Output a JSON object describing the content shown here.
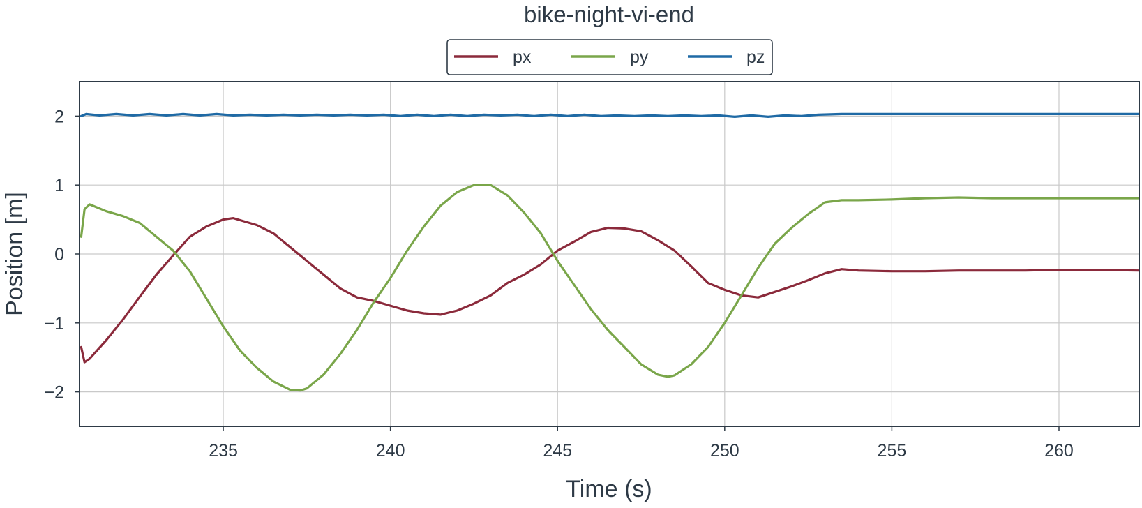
{
  "chart_data": {
    "type": "line",
    "title": "bike-night-vi-end",
    "xlabel": "Time (s)",
    "ylabel": "Position [m]",
    "xlim": [
      230.7,
      262.4
    ],
    "ylim": [
      -2.5,
      2.5
    ],
    "xticks": [
      235,
      240,
      245,
      250,
      255,
      260
    ],
    "yticks": [
      -2,
      -1,
      0,
      1,
      2
    ],
    "xtick_labels": [
      "235",
      "240",
      "245",
      "250",
      "255",
      "260"
    ],
    "ytick_labels": [
      "−2",
      "−1",
      "0",
      "1",
      "2"
    ],
    "grid": true,
    "legend": {
      "placement": "top-center, outside plot",
      "columns": 3
    },
    "colors": {
      "px": "#8b2a3b",
      "py": "#7aa64a",
      "pz": "#1f6aa5",
      "text": "#2e3a46"
    },
    "series": [
      {
        "name": "px",
        "color": "#8b2a3b",
        "points": [
          [
            230.75,
            -1.35
          ],
          [
            230.85,
            -1.57
          ],
          [
            231.0,
            -1.52
          ],
          [
            231.5,
            -1.25
          ],
          [
            232.0,
            -0.95
          ],
          [
            232.5,
            -0.62
          ],
          [
            233.0,
            -0.3
          ],
          [
            233.5,
            -0.02
          ],
          [
            234.0,
            0.25
          ],
          [
            234.5,
            0.4
          ],
          [
            235.0,
            0.5
          ],
          [
            235.3,
            0.52
          ],
          [
            236.0,
            0.42
          ],
          [
            236.5,
            0.3
          ],
          [
            237.0,
            0.1
          ],
          [
            237.5,
            -0.1
          ],
          [
            238.0,
            -0.3
          ],
          [
            238.5,
            -0.5
          ],
          [
            239.0,
            -0.63
          ],
          [
            239.5,
            -0.68
          ],
          [
            240.0,
            -0.75
          ],
          [
            240.5,
            -0.82
          ],
          [
            241.0,
            -0.86
          ],
          [
            241.5,
            -0.88
          ],
          [
            242.0,
            -0.82
          ],
          [
            242.5,
            -0.72
          ],
          [
            243.0,
            -0.6
          ],
          [
            243.5,
            -0.42
          ],
          [
            244.0,
            -0.3
          ],
          [
            244.5,
            -0.15
          ],
          [
            245.0,
            0.05
          ],
          [
            245.5,
            0.18
          ],
          [
            246.0,
            0.32
          ],
          [
            246.5,
            0.38
          ],
          [
            247.0,
            0.37
          ],
          [
            247.5,
            0.33
          ],
          [
            248.0,
            0.2
          ],
          [
            248.5,
            0.05
          ],
          [
            249.0,
            -0.18
          ],
          [
            249.5,
            -0.42
          ],
          [
            250.0,
            -0.52
          ],
          [
            250.5,
            -0.6
          ],
          [
            251.0,
            -0.63
          ],
          [
            251.5,
            -0.55
          ],
          [
            252.0,
            -0.47
          ],
          [
            252.5,
            -0.38
          ],
          [
            253.0,
            -0.28
          ],
          [
            253.5,
            -0.22
          ],
          [
            254.0,
            -0.24
          ],
          [
            255.0,
            -0.25
          ],
          [
            256.0,
            -0.25
          ],
          [
            257.0,
            -0.24
          ],
          [
            258.0,
            -0.24
          ],
          [
            259.0,
            -0.24
          ],
          [
            260.0,
            -0.23
          ],
          [
            261.0,
            -0.23
          ],
          [
            262.4,
            -0.24
          ]
        ]
      },
      {
        "name": "py",
        "color": "#7aa64a",
        "points": [
          [
            230.75,
            0.25
          ],
          [
            230.85,
            0.65
          ],
          [
            231.0,
            0.72
          ],
          [
            231.5,
            0.62
          ],
          [
            232.0,
            0.55
          ],
          [
            232.5,
            0.45
          ],
          [
            233.0,
            0.25
          ],
          [
            233.5,
            0.05
          ],
          [
            234.0,
            -0.25
          ],
          [
            234.5,
            -0.65
          ],
          [
            235.0,
            -1.05
          ],
          [
            235.5,
            -1.4
          ],
          [
            236.0,
            -1.65
          ],
          [
            236.5,
            -1.85
          ],
          [
            237.0,
            -1.97
          ],
          [
            237.3,
            -1.98
          ],
          [
            237.5,
            -1.95
          ],
          [
            238.0,
            -1.75
          ],
          [
            238.5,
            -1.45
          ],
          [
            239.0,
            -1.1
          ],
          [
            239.5,
            -0.7
          ],
          [
            240.0,
            -0.35
          ],
          [
            240.5,
            0.05
          ],
          [
            241.0,
            0.4
          ],
          [
            241.5,
            0.7
          ],
          [
            242.0,
            0.9
          ],
          [
            242.5,
            1.0
          ],
          [
            243.0,
            1.0
          ],
          [
            243.5,
            0.85
          ],
          [
            244.0,
            0.6
          ],
          [
            244.5,
            0.3
          ],
          [
            245.0,
            -0.1
          ],
          [
            245.5,
            -0.45
          ],
          [
            246.0,
            -0.8
          ],
          [
            246.5,
            -1.1
          ],
          [
            247.0,
            -1.35
          ],
          [
            247.5,
            -1.6
          ],
          [
            248.0,
            -1.75
          ],
          [
            248.3,
            -1.78
          ],
          [
            248.5,
            -1.76
          ],
          [
            249.0,
            -1.6
          ],
          [
            249.5,
            -1.35
          ],
          [
            250.0,
            -1.0
          ],
          [
            250.5,
            -0.6
          ],
          [
            251.0,
            -0.2
          ],
          [
            251.5,
            0.15
          ],
          [
            252.0,
            0.38
          ],
          [
            252.5,
            0.58
          ],
          [
            253.0,
            0.75
          ],
          [
            253.5,
            0.78
          ],
          [
            254.0,
            0.78
          ],
          [
            255.0,
            0.79
          ],
          [
            256.0,
            0.81
          ],
          [
            257.0,
            0.82
          ],
          [
            258.0,
            0.81
          ],
          [
            259.0,
            0.81
          ],
          [
            260.0,
            0.81
          ],
          [
            261.0,
            0.81
          ],
          [
            262.4,
            0.81
          ]
        ]
      },
      {
        "name": "pz",
        "color": "#1f6aa5",
        "points": [
          [
            230.75,
            2.0
          ],
          [
            230.9,
            2.03
          ],
          [
            231.3,
            2.01
          ],
          [
            231.8,
            2.03
          ],
          [
            232.3,
            2.01
          ],
          [
            232.8,
            2.03
          ],
          [
            233.3,
            2.01
          ],
          [
            233.8,
            2.03
          ],
          [
            234.3,
            2.01
          ],
          [
            234.8,
            2.03
          ],
          [
            235.3,
            2.01
          ],
          [
            235.8,
            2.02
          ],
          [
            236.3,
            2.01
          ],
          [
            236.8,
            2.02
          ],
          [
            237.3,
            2.01
          ],
          [
            237.8,
            2.02
          ],
          [
            238.3,
            2.01
          ],
          [
            238.8,
            2.02
          ],
          [
            239.3,
            2.01
          ],
          [
            239.8,
            2.02
          ],
          [
            240.3,
            2.0
          ],
          [
            240.8,
            2.02
          ],
          [
            241.3,
            2.0
          ],
          [
            241.8,
            2.02
          ],
          [
            242.3,
            2.0
          ],
          [
            242.8,
            2.02
          ],
          [
            243.3,
            2.01
          ],
          [
            243.8,
            2.02
          ],
          [
            244.3,
            2.0
          ],
          [
            244.8,
            2.02
          ],
          [
            245.3,
            2.0
          ],
          [
            245.8,
            2.02
          ],
          [
            246.3,
            2.0
          ],
          [
            246.8,
            2.01
          ],
          [
            247.3,
            2.0
          ],
          [
            247.8,
            2.01
          ],
          [
            248.3,
            2.0
          ],
          [
            248.8,
            2.01
          ],
          [
            249.3,
            2.0
          ],
          [
            249.8,
            2.01
          ],
          [
            250.3,
            1.99
          ],
          [
            250.8,
            2.01
          ],
          [
            251.3,
            1.99
          ],
          [
            251.8,
            2.01
          ],
          [
            252.3,
            2.0
          ],
          [
            252.8,
            2.02
          ],
          [
            253.5,
            2.03
          ],
          [
            255.0,
            2.03
          ],
          [
            257.0,
            2.03
          ],
          [
            259.0,
            2.03
          ],
          [
            261.0,
            2.03
          ],
          [
            262.4,
            2.03
          ]
        ]
      }
    ]
  }
}
